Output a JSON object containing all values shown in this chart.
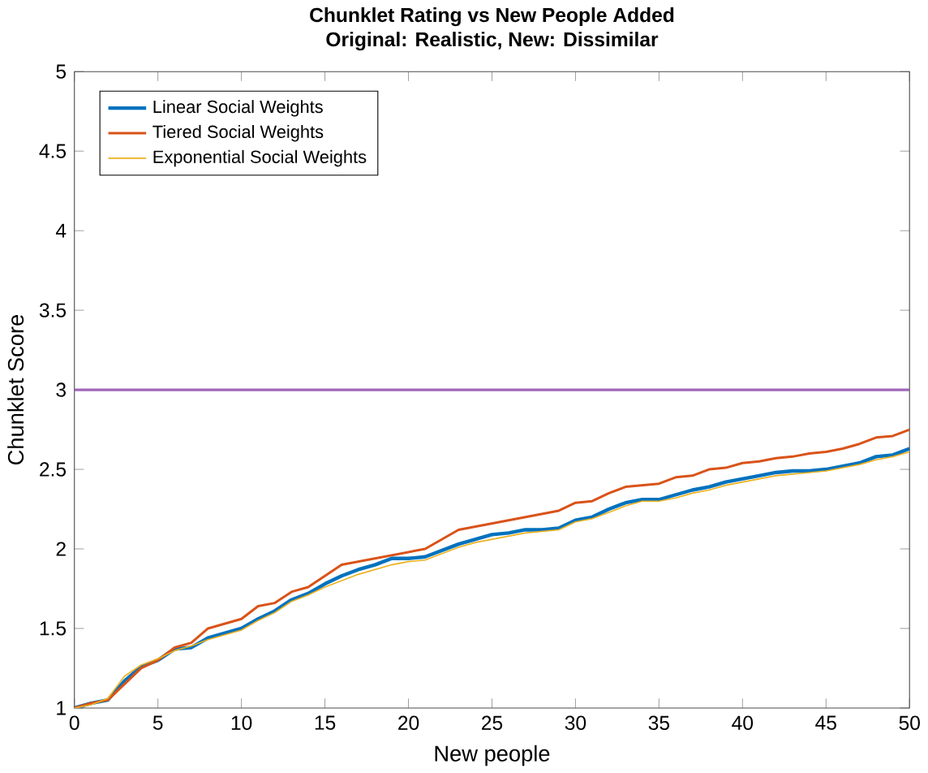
{
  "chart_data": {
    "type": "line",
    "title": "Chunklet Rating vs New People Added",
    "subtitle": "Original: Realistic, New: Dissimilar",
    "xlabel": "New people",
    "ylabel": "Chunklet Score",
    "x": [
      0,
      1,
      2,
      3,
      4,
      5,
      6,
      7,
      8,
      9,
      10,
      11,
      12,
      13,
      14,
      15,
      16,
      17,
      18,
      19,
      20,
      21,
      22,
      23,
      24,
      25,
      26,
      27,
      28,
      29,
      30,
      31,
      32,
      33,
      34,
      35,
      36,
      37,
      38,
      39,
      40,
      41,
      42,
      43,
      44,
      45,
      46,
      47,
      48,
      49,
      50
    ],
    "series": [
      {
        "name": "Linear Social Weights",
        "color": "#0072bd",
        "values": [
          1.0,
          1.03,
          1.05,
          1.17,
          1.26,
          1.3,
          1.37,
          1.38,
          1.44,
          1.47,
          1.5,
          1.56,
          1.61,
          1.68,
          1.72,
          1.78,
          1.83,
          1.87,
          1.9,
          1.94,
          1.94,
          1.95,
          1.99,
          2.03,
          2.06,
          2.09,
          2.1,
          2.12,
          2.12,
          2.13,
          2.18,
          2.2,
          2.25,
          2.29,
          2.31,
          2.31,
          2.34,
          2.37,
          2.39,
          2.42,
          2.44,
          2.46,
          2.48,
          2.49,
          2.49,
          2.5,
          2.52,
          2.54,
          2.58,
          2.59,
          2.63
        ]
      },
      {
        "name": "Tiered Social Weights",
        "color": "#d95319",
        "values": [
          1.0,
          1.03,
          1.05,
          1.15,
          1.25,
          1.3,
          1.38,
          1.41,
          1.5,
          1.53,
          1.56,
          1.64,
          1.66,
          1.73,
          1.76,
          1.83,
          1.9,
          1.92,
          1.94,
          1.96,
          1.98,
          2.0,
          2.06,
          2.12,
          2.14,
          2.16,
          2.18,
          2.2,
          2.22,
          2.24,
          2.29,
          2.3,
          2.35,
          2.39,
          2.4,
          2.41,
          2.45,
          2.46,
          2.5,
          2.51,
          2.54,
          2.55,
          2.57,
          2.58,
          2.6,
          2.61,
          2.63,
          2.66,
          2.7,
          2.71,
          2.75
        ]
      },
      {
        "name": "Exponential Social Weights",
        "color": "#edb120",
        "values": [
          1.0,
          1.02,
          1.06,
          1.2,
          1.27,
          1.31,
          1.36,
          1.39,
          1.43,
          1.46,
          1.49,
          1.55,
          1.6,
          1.67,
          1.71,
          1.76,
          1.8,
          1.84,
          1.87,
          1.9,
          1.92,
          1.93,
          1.97,
          2.01,
          2.04,
          2.06,
          2.08,
          2.1,
          2.11,
          2.12,
          2.17,
          2.19,
          2.23,
          2.27,
          2.3,
          2.3,
          2.32,
          2.35,
          2.37,
          2.4,
          2.42,
          2.44,
          2.46,
          2.47,
          2.48,
          2.49,
          2.51,
          2.53,
          2.56,
          2.58,
          2.61
        ]
      }
    ],
    "ref_lines": [
      {
        "axis": "y",
        "value": 3,
        "color": "#a066b8"
      }
    ],
    "xlim": [
      0,
      50
    ],
    "xticks": [
      0,
      5,
      10,
      15,
      20,
      25,
      30,
      35,
      40,
      45,
      50
    ],
    "ylim": [
      1,
      5
    ],
    "yticks": [
      1,
      {
        "value": 1.5,
        "label": "1.5"
      },
      2,
      {
        "value": 2.5,
        "label": "2.5"
      },
      3,
      {
        "value": 3.5,
        "label": "3.5"
      },
      4,
      {
        "value": 4.5,
        "label": "4.5"
      },
      5
    ],
    "legend": "top left",
    "grid": false,
    "marker": "none",
    "line_style": "solid"
  }
}
